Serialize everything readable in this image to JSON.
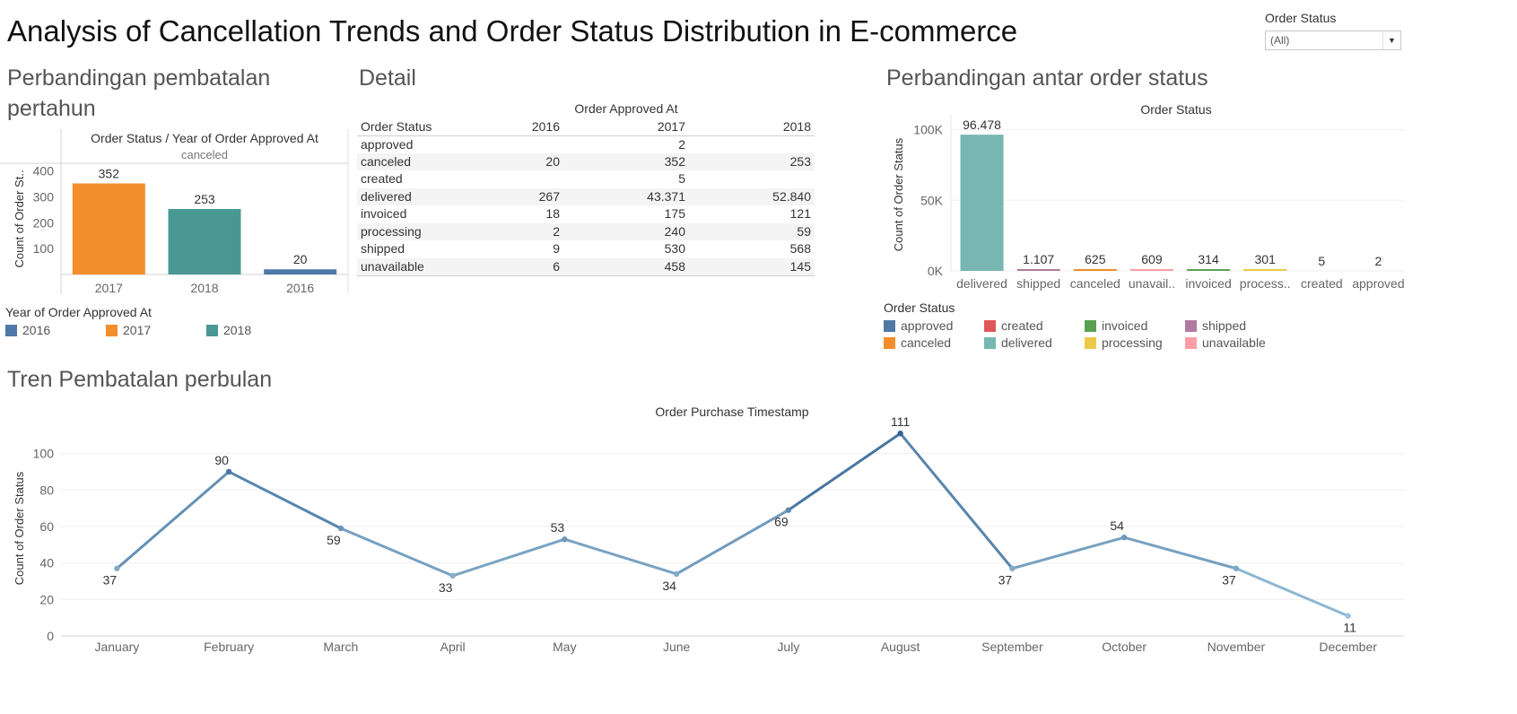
{
  "dashboard_title": "Analysis of Cancellation Trends and Order Status Distribution in E-commerce",
  "filter": {
    "label": "Order Status",
    "value": "(All)"
  },
  "section_titles": {
    "yearly": "Perbandingan pembatalan pertahun",
    "detail": "Detail",
    "status": "Perbandingan antar order status",
    "monthly": "Tren Pembatalan perbulan"
  },
  "detail_table": {
    "header_group": "Order Approved At",
    "columns": [
      "Order Status",
      "2016",
      "2017",
      "2018"
    ],
    "rows": [
      [
        "approved",
        "",
        "2",
        ""
      ],
      [
        "canceled",
        "20",
        "352",
        "253"
      ],
      [
        "created",
        "",
        "5",
        ""
      ],
      [
        "delivered",
        "267",
        "43.371",
        "52.840"
      ],
      [
        "invoiced",
        "18",
        "175",
        "121"
      ],
      [
        "processing",
        "2",
        "240",
        "59"
      ],
      [
        "shipped",
        "9",
        "530",
        "568"
      ],
      [
        "unavailable",
        "6",
        "458",
        "145"
      ]
    ]
  },
  "yearly_legend": {
    "title": "Year of Order Approved At",
    "items": [
      {
        "label": "2016",
        "color": "#4e79a7"
      },
      {
        "label": "2017",
        "color": "#f28e2b"
      },
      {
        "label": "2018",
        "color": "#499894"
      }
    ]
  },
  "status_legend": {
    "title": "Order Status",
    "items": [
      {
        "label": "approved",
        "color": "#4e79a7"
      },
      {
        "label": "created",
        "color": "#e15759"
      },
      {
        "label": "invoiced",
        "color": "#59a14f"
      },
      {
        "label": "shipped",
        "color": "#b07aa1"
      },
      {
        "label": "canceled",
        "color": "#f28e2b"
      },
      {
        "label": "delivered",
        "color": "#76b7b2"
      },
      {
        "label": "processing",
        "color": "#edc948"
      },
      {
        "label": "unavailable",
        "color": "#ff9da7"
      }
    ]
  },
  "chart_data": [
    {
      "type": "bar",
      "title": "Order Status / Year of Order Approved At",
      "subtitle": "canceled",
      "ylabel": "Count of Order St..",
      "categories": [
        "2017",
        "2018",
        "2016"
      ],
      "values": [
        352,
        253,
        20
      ],
      "value_labels": [
        "352",
        "253",
        "20"
      ],
      "colors": [
        "#f28e2b",
        "#499894",
        "#4e79a7"
      ],
      "ylim": [
        0,
        430
      ],
      "yticks": [
        100,
        200,
        300,
        400
      ],
      "grid": false
    },
    {
      "type": "bar",
      "title": "Order Status",
      "ylabel": "Count of Order Status",
      "categories": [
        "delivered",
        "shipped",
        "canceled",
        "unavail..",
        "invoiced",
        "process..",
        "created",
        "approved"
      ],
      "values": [
        96478,
        1107,
        625,
        609,
        314,
        301,
        5,
        2
      ],
      "value_labels": [
        "96.478",
        "1.107",
        "625",
        "609",
        "314",
        "301",
        "5",
        "2"
      ],
      "colors": [
        "#76b7b2",
        "#b07aa1",
        "#f28e2b",
        "#ff9da7",
        "#59a14f",
        "#edc948",
        "#e15759",
        "#4e79a7"
      ],
      "ylim": [
        0,
        108000
      ],
      "yticks": [
        0,
        50000,
        100000
      ],
      "ytick_labels": [
        "0K",
        "50K",
        "100K"
      ],
      "grid": true
    },
    {
      "type": "line",
      "title": "Order Purchase Timestamp",
      "ylabel": "Count of Order Status",
      "x": [
        "January",
        "February",
        "March",
        "April",
        "May",
        "June",
        "July",
        "August",
        "September",
        "October",
        "November",
        "December"
      ],
      "values": [
        37,
        90,
        59,
        33,
        53,
        34,
        69,
        111,
        37,
        54,
        37,
        11
      ],
      "value_labels": [
        "37",
        "90",
        "59",
        "33",
        "53",
        "34",
        "69",
        "111",
        "37",
        "54",
        "37",
        "11"
      ],
      "ylim": [
        0,
        118
      ],
      "yticks": [
        0,
        20,
        40,
        60,
        80,
        100
      ],
      "grid": true
    }
  ]
}
